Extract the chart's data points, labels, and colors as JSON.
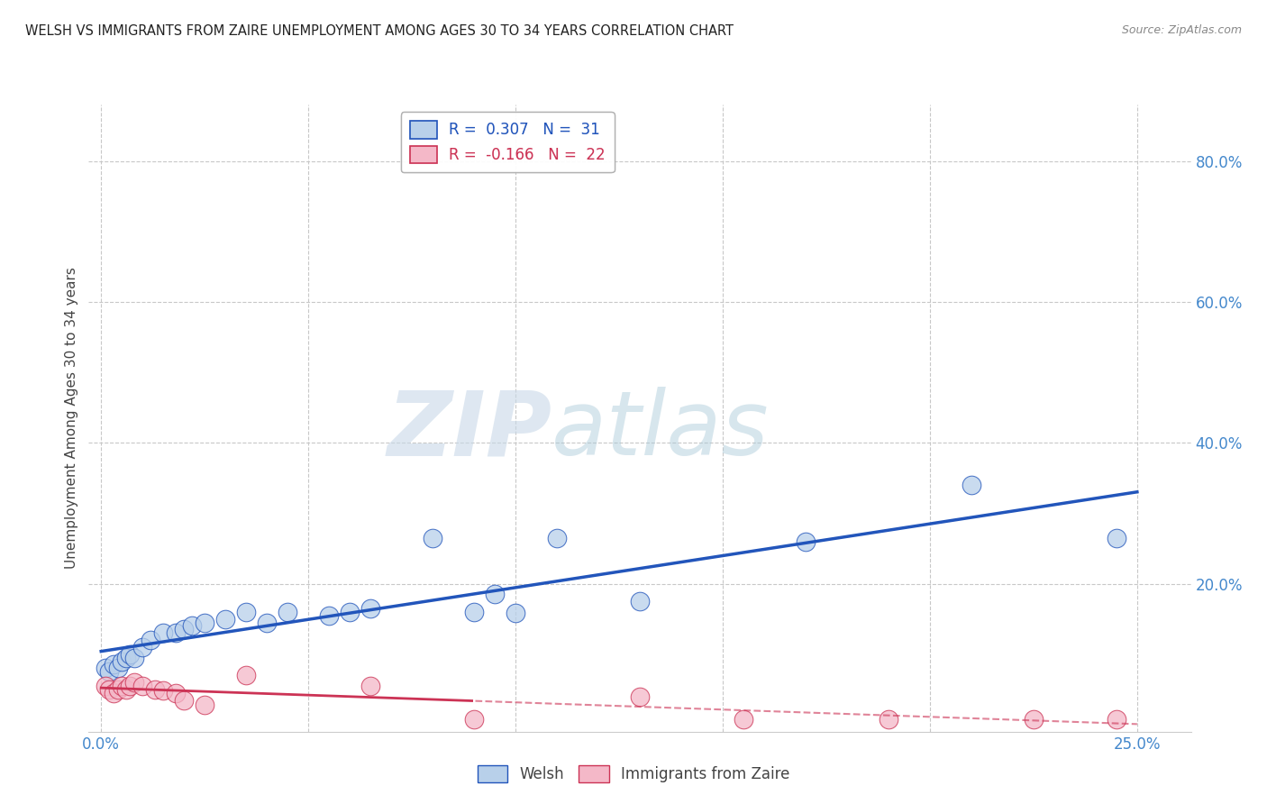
{
  "title": "WELSH VS IMMIGRANTS FROM ZAIRE UNEMPLOYMENT AMONG AGES 30 TO 34 YEARS CORRELATION CHART",
  "source": "Source: ZipAtlas.com",
  "ylabel": "Unemployment Among Ages 30 to 34 years",
  "xlim": [
    -0.003,
    0.263
  ],
  "ylim": [
    -0.01,
    0.88
  ],
  "xticks": [
    0.0,
    0.05,
    0.1,
    0.15,
    0.2,
    0.25
  ],
  "yticks": [
    0.0,
    0.2,
    0.4,
    0.6,
    0.8
  ],
  "ytick_labels": [
    "",
    "20.0%",
    "40.0%",
    "60.0%",
    "80.0%"
  ],
  "xtick_labels": [
    "0.0%",
    "",
    "",
    "",
    "",
    "25.0%"
  ],
  "welsh_R": 0.307,
  "welsh_N": 31,
  "zaire_R": -0.166,
  "zaire_N": 22,
  "welsh_color": "#b8d0ea",
  "zaire_color": "#f4b8c8",
  "welsh_line_color": "#2255bb",
  "zaire_line_color": "#cc3355",
  "zaire_line_dashed_after": 0.09,
  "welsh_x": [
    0.001,
    0.002,
    0.003,
    0.004,
    0.005,
    0.006,
    0.007,
    0.008,
    0.01,
    0.012,
    0.015,
    0.018,
    0.02,
    0.022,
    0.025,
    0.03,
    0.035,
    0.04,
    0.045,
    0.055,
    0.06,
    0.065,
    0.08,
    0.09,
    0.095,
    0.1,
    0.11,
    0.13,
    0.17,
    0.21,
    0.245
  ],
  "welsh_y": [
    0.08,
    0.075,
    0.085,
    0.08,
    0.09,
    0.095,
    0.1,
    0.095,
    0.11,
    0.12,
    0.13,
    0.13,
    0.135,
    0.14,
    0.145,
    0.15,
    0.16,
    0.145,
    0.16,
    0.155,
    0.16,
    0.165,
    0.265,
    0.16,
    0.185,
    0.158,
    0.265,
    0.175,
    0.26,
    0.34,
    0.265
  ],
  "zaire_x": [
    0.001,
    0.002,
    0.003,
    0.004,
    0.005,
    0.006,
    0.007,
    0.008,
    0.01,
    0.013,
    0.015,
    0.018,
    0.02,
    0.025,
    0.035,
    0.065,
    0.09,
    0.13,
    0.155,
    0.19,
    0.225,
    0.245
  ],
  "zaire_y": [
    0.055,
    0.05,
    0.045,
    0.05,
    0.055,
    0.05,
    0.055,
    0.06,
    0.055,
    0.05,
    0.048,
    0.045,
    0.035,
    0.028,
    0.07,
    0.055,
    0.008,
    0.04,
    0.008,
    0.008,
    0.008,
    0.008
  ],
  "watermark_zip": "ZIP",
  "watermark_atlas": "atlas",
  "background_color": "#ffffff",
  "grid_color": "#c8c8c8",
  "title_color": "#222222",
  "axis_label_color": "#444444",
  "tick_color": "#4488cc",
  "legend_box_color": "#ffffff"
}
